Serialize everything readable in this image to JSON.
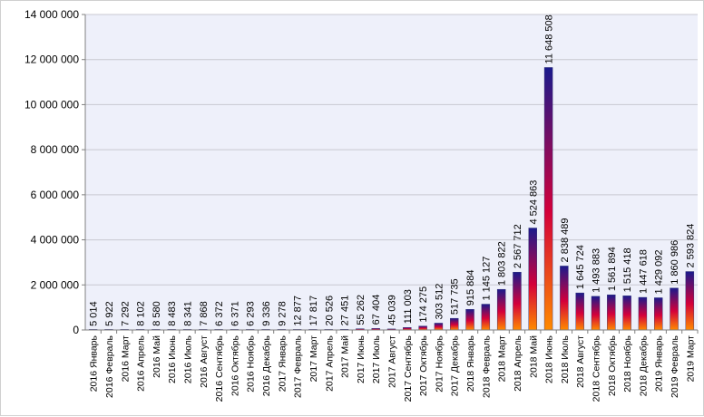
{
  "chart_data": {
    "type": "bar",
    "title": "",
    "xlabel": "",
    "ylabel": "",
    "ylim": [
      0,
      14000000
    ],
    "yticks": [
      0,
      2000000,
      4000000,
      6000000,
      8000000,
      10000000,
      12000000,
      14000000
    ],
    "ytick_labels": [
      "0",
      "2 000 000",
      "4 000 000",
      "6 000 000",
      "8 000 000",
      "10 000 000",
      "12 000 000",
      "14 000 000"
    ],
    "grid": true,
    "plot_background": "#eef0fa",
    "bar_gradient": [
      "#1a1a8c",
      "#d4003a",
      "#ff8a00"
    ],
    "categories": [
      "2016 Январь",
      "2016 Февраль",
      "2016 Март",
      "2016 Апрель",
      "2016 Май",
      "2016 Июнь",
      "2016 Июль",
      "2016 Август",
      "2016 Сентябрь",
      "2016 Октябрь",
      "2016 Ноябрь",
      "2016 Декабрь",
      "2017 Январь",
      "2017 Февраль",
      "2017 Март",
      "2017 Апрель",
      "2017 Май",
      "2017 Июнь",
      "2017 Июль",
      "2017 Август",
      "2017 Сентябрь",
      "2017 Октябрь",
      "2017 Ноябрь",
      "2017 Декабрь",
      "2018 Январь",
      "2018 Февраль",
      "2018 Март",
      "2018 Апрель",
      "2018 Май",
      "2018 Июнь",
      "2018 Июль",
      "2018 Август",
      "2018 Сентябрь",
      "2018 Октябрь",
      "2018 Ноябрь",
      "2018 Декабрь",
      "2019 Январь",
      "2019 Февраль",
      "2019 Март"
    ],
    "values": [
      5014,
      5922,
      7292,
      8102,
      8580,
      8483,
      8341,
      7868,
      6372,
      6371,
      6293,
      9336,
      9278,
      12877,
      17817,
      20526,
      27451,
      55262,
      67404,
      45039,
      111003,
      174275,
      303512,
      517735,
      915884,
      1145127,
      1803822,
      2567712,
      4524863,
      11648508,
      2838489,
      1645724,
      1493883,
      1561894,
      1515418,
      1447618,
      1429092,
      1860986,
      2593824
    ],
    "labels": [
      "5 014",
      "5 922",
      "7 292",
      "8 102",
      "8 580",
      "8 483",
      "8 341",
      "7 868",
      "6 372",
      "6 371",
      "6 293",
      "9 336",
      "9 278",
      "12 877",
      "17 817",
      "20 526",
      "27 451",
      "55 262",
      "67 404",
      "45 039",
      "111 003",
      "174 275",
      "303 512",
      "517 735",
      "915 884",
      "1 145 127",
      "1 803 822",
      "2 567 712",
      "4 524 863",
      "11 648 508",
      "2 838 489",
      "1 645 724",
      "1 493 883",
      "1 561 894",
      "1 515 418",
      "1 447 618",
      "1 429 092",
      "1 860 986",
      "2 593 824"
    ]
  }
}
